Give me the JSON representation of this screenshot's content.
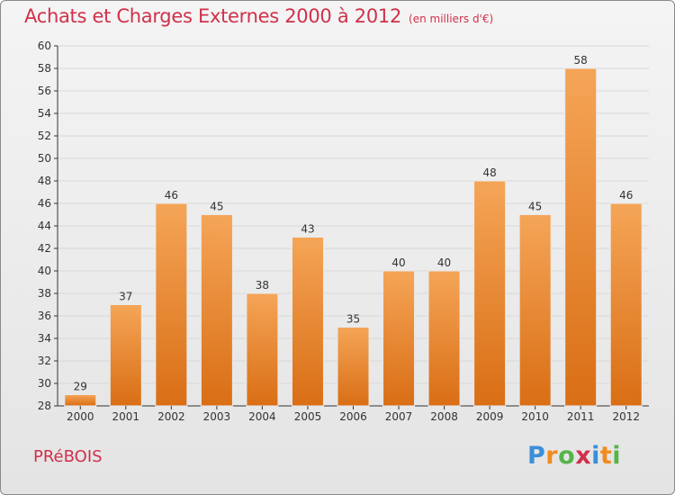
{
  "title": "Achats et Charges Externes 2000 à 2012",
  "subtitle": "(en milliers d'€)",
  "place_name": "PRéBOIS",
  "logo": {
    "text": "Proxiti",
    "letter_colors": [
      "#3a8fd8",
      "#f28a1e",
      "#56b548",
      "#d0314a",
      "#3a8fd8",
      "#f28a1e",
      "#56b548"
    ]
  },
  "colors": {
    "title": "#d0314a",
    "bar_light": "#f5a557",
    "bar_dark": "#d96e15",
    "grid": "#d8d8d8",
    "axis": "#333333"
  },
  "chart_data": {
    "type": "bar",
    "categories": [
      "2000",
      "2001",
      "2002",
      "2003",
      "2004",
      "2005",
      "2006",
      "2007",
      "2008",
      "2009",
      "2010",
      "2011",
      "2012"
    ],
    "values": [
      29,
      37,
      46,
      45,
      38,
      43,
      35,
      40,
      40,
      48,
      45,
      58,
      46
    ],
    "ylim": [
      28,
      60
    ],
    "yticks": [
      28,
      30,
      32,
      34,
      36,
      38,
      40,
      42,
      44,
      46,
      48,
      50,
      52,
      54,
      56,
      58,
      60
    ],
    "grid": true,
    "legend": "none"
  }
}
